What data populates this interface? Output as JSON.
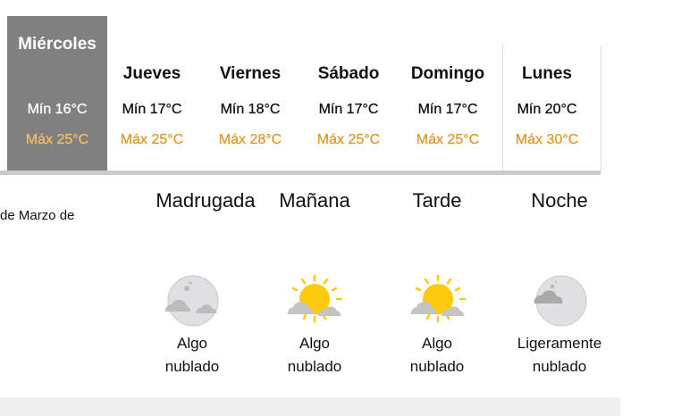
{
  "days": [
    {
      "name": "Miércoles",
      "min": "Mín 16°C",
      "max": "Máx 25°C",
      "selected": true
    },
    {
      "name": "Jueves",
      "min": "Mín 17°C",
      "max": "Máx 25°C"
    },
    {
      "name": "Viernes",
      "min": "Mín 18°C",
      "max": "Máx 28°C"
    },
    {
      "name": "Sábado",
      "min": "Mín 17°C",
      "max": "Máx 25°C"
    },
    {
      "name": "Domingo",
      "min": "Mín 17°C",
      "max": "Máx 25°C"
    },
    {
      "name": "Lunes",
      "min": "Mín 20°C",
      "max": "Máx 30°C"
    }
  ],
  "date_fragment": "de Marzo de",
  "periods": [
    {
      "name": "Madrugada",
      "icon": "moon-cloud-icon",
      "desc1": "Algo",
      "desc2": "nublado"
    },
    {
      "name": "Mañana",
      "icon": "sun-cloud-icon",
      "desc1": "Algo",
      "desc2": "nublado"
    },
    {
      "name": "Tarde",
      "icon": "sun-cloud-icon",
      "desc1": "Algo",
      "desc2": "nublado"
    },
    {
      "name": "Noche",
      "icon": "moon-cloud-icon",
      "desc1": "Ligeramente",
      "desc2": "nublado"
    }
  ],
  "colors": {
    "selected_bg": "#808080",
    "max_temp": "#e09a2c",
    "sun": "#fcc90c"
  }
}
